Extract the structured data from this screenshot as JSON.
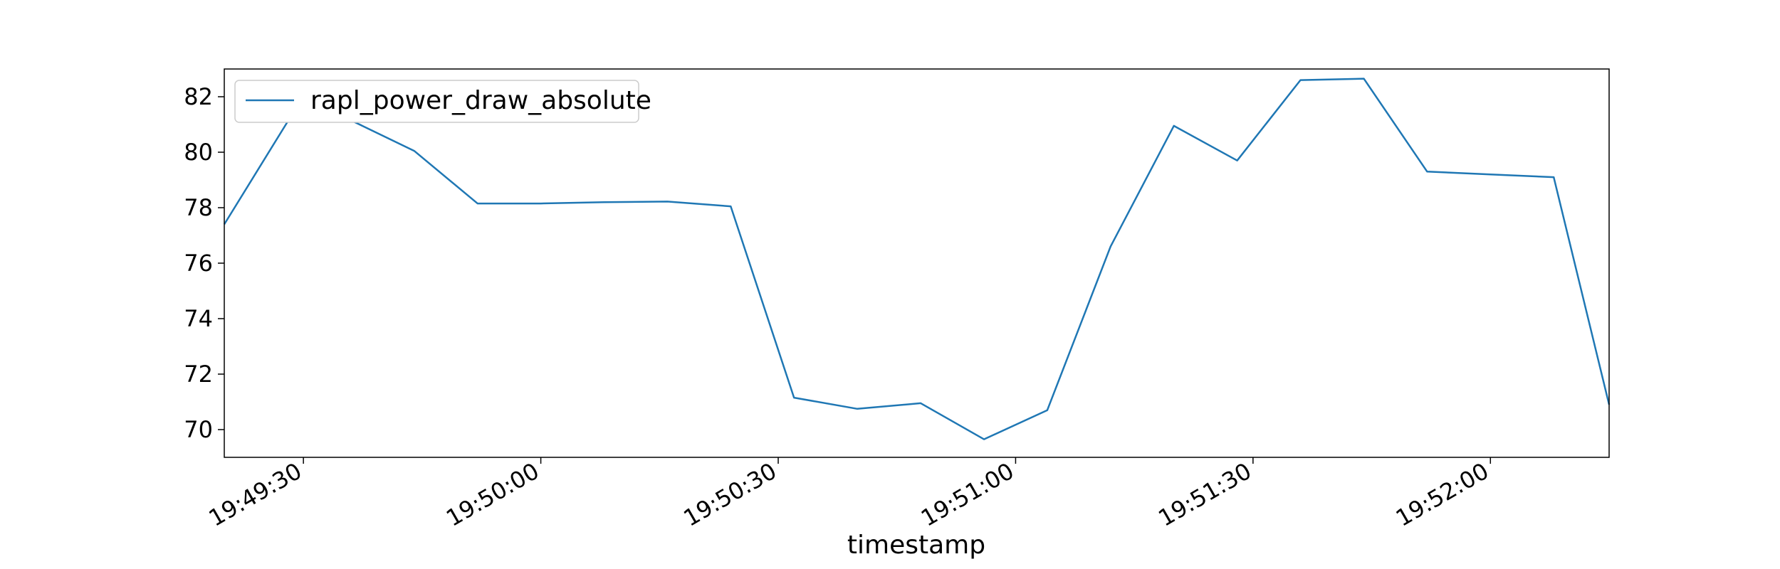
{
  "chart_data": {
    "type": "line",
    "xlabel": "timestamp",
    "ylabel": "",
    "ylim": [
      69,
      83
    ],
    "xlim": [
      "19:49:20",
      "19:52:15"
    ],
    "grid": false,
    "legend_placement": "top-left",
    "y_ticks": [
      70,
      72,
      74,
      76,
      78,
      80,
      82
    ],
    "x_ticks": [
      "19:49:30",
      "19:50:00",
      "19:50:30",
      "19:51:00",
      "19:51:30",
      "19:52:00"
    ],
    "series": [
      {
        "name": "rapl_power_draw_absolute",
        "color": "#1f77b4",
        "x": [
          "19:49:20",
          "19:49:28",
          "19:49:36",
          "19:49:44",
          "19:49:52",
          "19:50:00",
          "19:50:08",
          "19:50:16",
          "19:50:24",
          "19:50:32",
          "19:50:40",
          "19:50:48",
          "19:50:56",
          "19:51:04",
          "19:51:12",
          "19:51:20",
          "19:51:28",
          "19:51:36",
          "19:51:44",
          "19:51:52",
          "19:52:00",
          "19:52:08",
          "19:52:15"
        ],
        "values": [
          77.4,
          81.1,
          81.15,
          80.05,
          78.15,
          78.15,
          78.2,
          78.22,
          78.05,
          71.15,
          70.75,
          70.95,
          69.65,
          70.7,
          76.6,
          80.95,
          79.7,
          82.6,
          82.65,
          79.3,
          79.2,
          79.1,
          70.9
        ]
      }
    ]
  }
}
